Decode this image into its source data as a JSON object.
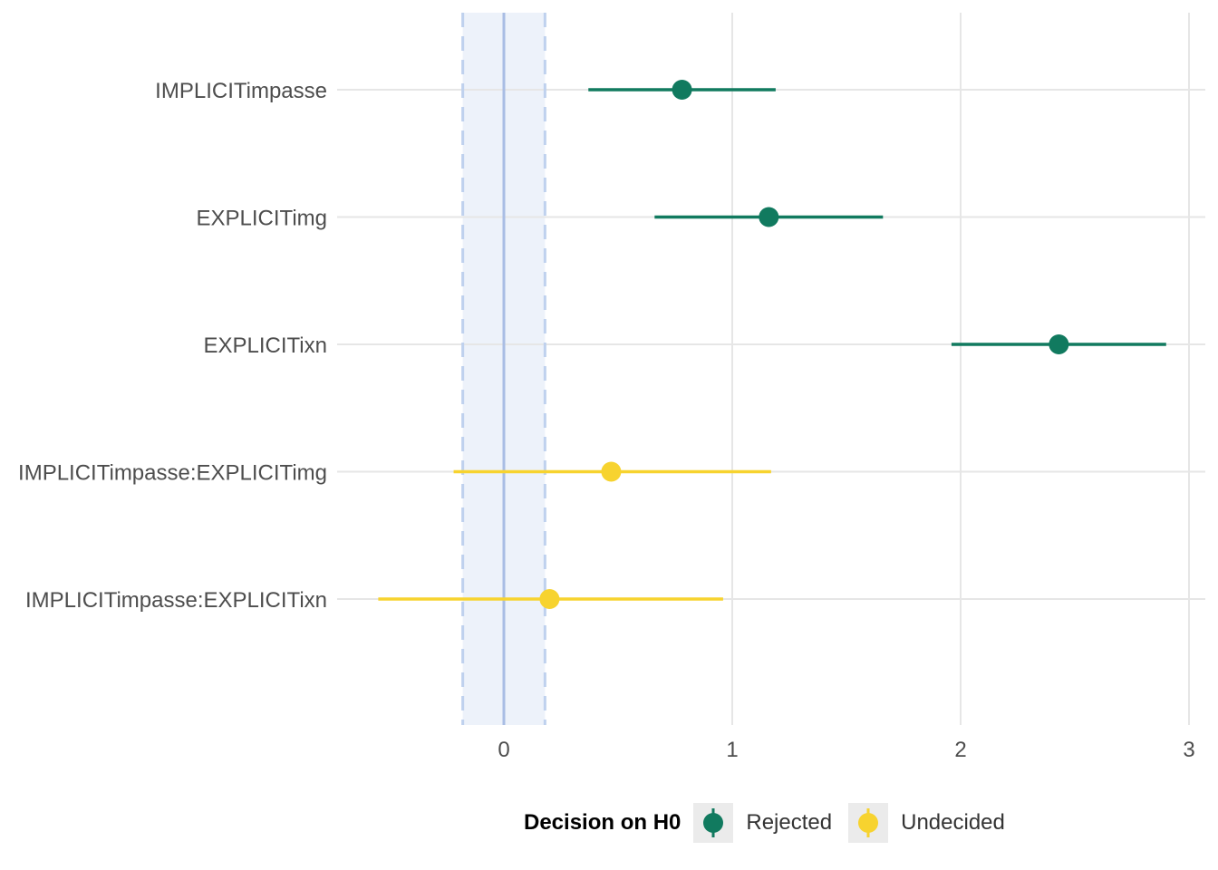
{
  "chart_data": {
    "type": "scatter",
    "subtype": "forest-plot",
    "title": "",
    "xlabel": "",
    "ylabel": "",
    "xlim": [
      -0.6,
      3.0
    ],
    "x_ticks": [
      0,
      1,
      2,
      3
    ],
    "rope": {
      "low": -0.18,
      "high": 0.18,
      "center": 0
    },
    "categories": [
      "IMPLICITimpasse",
      "EXPLICITimg",
      "EXPLICITixn",
      "IMPLICITimpasse:EXPLICITimg",
      "IMPLICITimpasse:EXPLICITixn"
    ],
    "series": [
      {
        "label": "IMPLICITimpasse",
        "estimate": 0.78,
        "low": 0.37,
        "high": 1.19,
        "decision": "Rejected"
      },
      {
        "label": "EXPLICITimg",
        "estimate": 1.16,
        "low": 0.66,
        "high": 1.66,
        "decision": "Rejected"
      },
      {
        "label": "EXPLICITixn",
        "estimate": 2.43,
        "low": 1.96,
        "high": 2.9,
        "decision": "Rejected"
      },
      {
        "label": "IMPLICITimpasse:EXPLICITimg",
        "estimate": 0.47,
        "low": -0.22,
        "high": 1.17,
        "decision": "Undecided"
      },
      {
        "label": "IMPLICITimpasse:EXPLICITixn",
        "estimate": 0.2,
        "low": -0.55,
        "high": 0.96,
        "decision": "Undecided"
      }
    ],
    "legend": {
      "title": "Decision on H0",
      "position": "bottom",
      "items": [
        {
          "label": "Rejected",
          "color": "#117a5f"
        },
        {
          "label": "Undecided",
          "color": "#f7d32f"
        }
      ]
    },
    "grid": true,
    "colors": {
      "rope_fill": "#edf2fa",
      "rope_line": "#a9bde4",
      "rope_dash": "#bfd1ee"
    }
  }
}
